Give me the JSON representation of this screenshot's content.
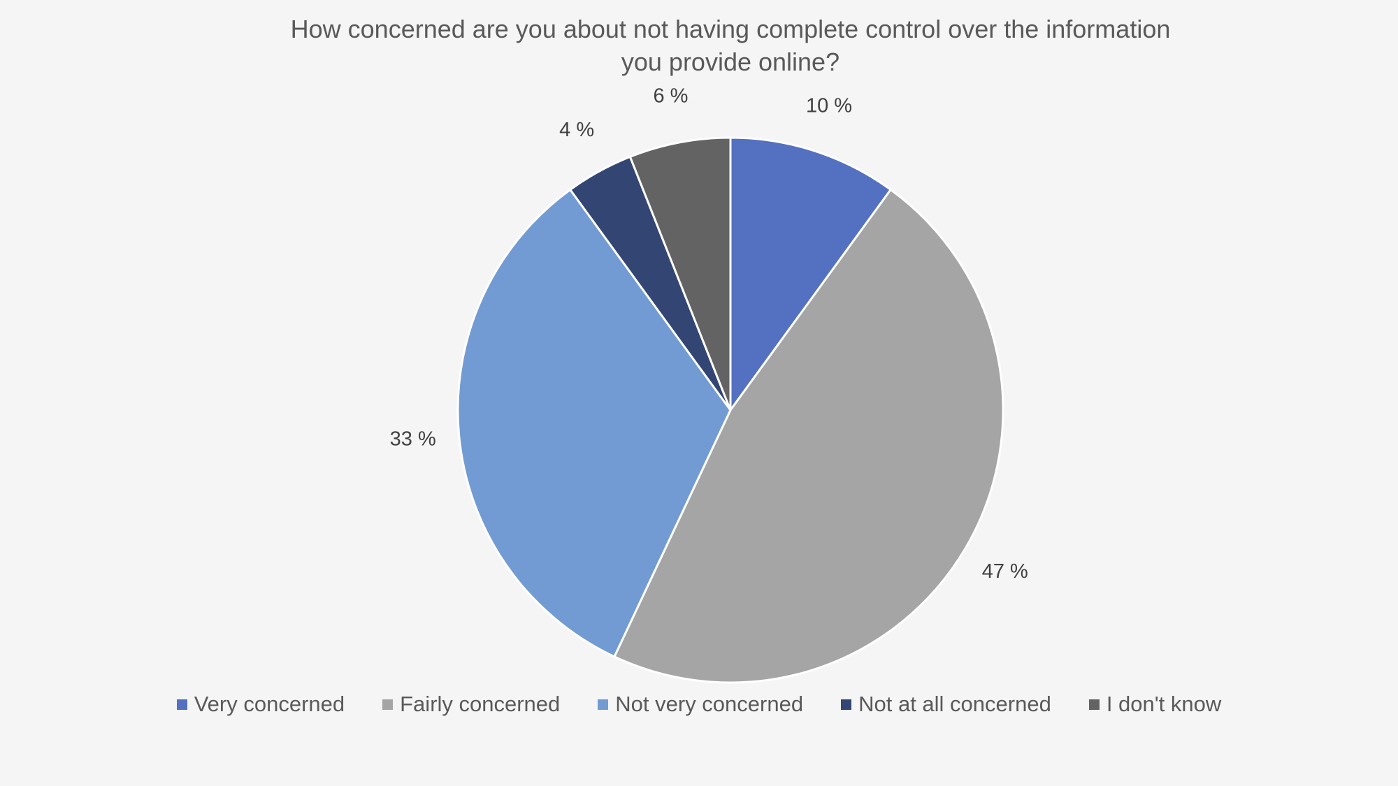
{
  "chart_data": {
    "type": "pie",
    "title": "How concerned are you about not having complete control over the information you provide online?",
    "categories": [
      "Very concerned",
      "Fairly concerned",
      "Not very concerned",
      "Not at all concerned",
      "I don't know"
    ],
    "values": [
      10,
      47,
      33,
      4,
      6
    ],
    "data_labels": [
      "10 %",
      "47 %",
      "33 %",
      "4 %",
      "6 %"
    ],
    "colors": [
      "#5470c1",
      "#a5a5a5",
      "#729bd3",
      "#334573",
      "#636363"
    ],
    "legend_position": "bottom"
  }
}
